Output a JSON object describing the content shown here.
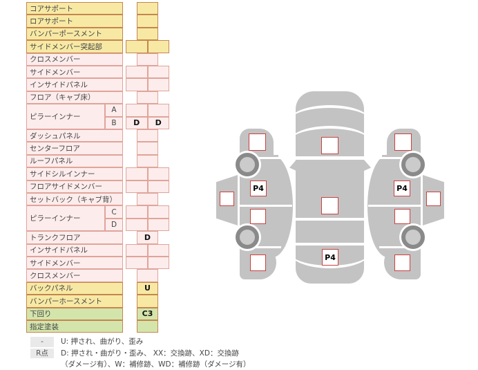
{
  "table": {
    "rows": [
      {
        "label": "コアサポート",
        "sub": "",
        "color": "yellow",
        "type": "single",
        "values": [
          ""
        ]
      },
      {
        "label": "ロアサポート",
        "sub": "",
        "color": "yellow",
        "type": "single",
        "values": [
          ""
        ]
      },
      {
        "label": "バンパーポースメント",
        "sub": "",
        "color": "yellow",
        "type": "single",
        "values": [
          ""
        ]
      },
      {
        "label": "サイドメンバー突起部",
        "sub": "",
        "color": "yellow",
        "type": "double",
        "values": [
          "",
          ""
        ]
      },
      {
        "label": "クロスメンバー",
        "sub": "",
        "color": "pink",
        "type": "single",
        "values": [
          ""
        ]
      },
      {
        "label": "サイドメンバー",
        "sub": "",
        "color": "pink",
        "type": "double",
        "values": [
          "",
          ""
        ]
      },
      {
        "label": "インサイドパネル",
        "sub": "",
        "color": "pink",
        "type": "double",
        "values": [
          "",
          ""
        ]
      },
      {
        "label": "フロア（キャブ床）",
        "sub": "",
        "color": "pink",
        "type": "single",
        "values": [
          ""
        ]
      },
      {
        "label": "ピラーインナー",
        "sub": "A",
        "color": "pink",
        "type": "double",
        "values": [
          "",
          ""
        ],
        "span": 2
      },
      {
        "label": "",
        "sub": "B",
        "color": "pink",
        "type": "double",
        "values": [
          "D",
          "D"
        ],
        "cont": true
      },
      {
        "label": "ダッシュパネル",
        "sub": "",
        "color": "pink",
        "type": "single",
        "values": [
          ""
        ]
      },
      {
        "label": "センターフロア",
        "sub": "",
        "color": "pink",
        "type": "single",
        "values": [
          ""
        ]
      },
      {
        "label": "ルーフパネル",
        "sub": "",
        "color": "pink",
        "type": "single",
        "values": [
          ""
        ]
      },
      {
        "label": "サイドシルインナー",
        "sub": "",
        "color": "pink",
        "type": "double",
        "values": [
          "",
          ""
        ]
      },
      {
        "label": "フロアサイドメンバー",
        "sub": "",
        "color": "pink",
        "type": "double",
        "values": [
          "",
          ""
        ]
      },
      {
        "label": "セットバック（キャブ背）",
        "sub": "",
        "color": "pink",
        "type": "single",
        "values": [
          ""
        ]
      },
      {
        "label": "ピラーインナー",
        "sub": "C",
        "color": "pink",
        "type": "double",
        "values": [
          "",
          ""
        ],
        "span": 2
      },
      {
        "label": "",
        "sub": "D",
        "color": "pink",
        "type": "double",
        "values": [
          "",
          ""
        ],
        "cont": true
      },
      {
        "label": "トランクフロア",
        "sub": "",
        "color": "pink",
        "type": "single",
        "values": [
          "D"
        ]
      },
      {
        "label": "インサイドパネル",
        "sub": "",
        "color": "pink",
        "type": "double",
        "values": [
          "",
          ""
        ]
      },
      {
        "label": "サイドメンバー",
        "sub": "",
        "color": "pink",
        "type": "double",
        "values": [
          "",
          ""
        ]
      },
      {
        "label": "クロスメンバー",
        "sub": "",
        "color": "pink",
        "type": "single",
        "values": [
          ""
        ]
      },
      {
        "label": "バックパネル",
        "sub": "",
        "color": "yellow",
        "type": "single",
        "values": [
          "U"
        ]
      },
      {
        "label": "バンパーホースメント",
        "sub": "",
        "color": "yellow",
        "type": "single",
        "values": [
          ""
        ]
      },
      {
        "label": "下回り",
        "sub": "",
        "color": "green",
        "type": "single",
        "values": [
          "C3"
        ]
      },
      {
        "label": "指定塗装",
        "sub": "",
        "color": "green",
        "type": "single",
        "values": [
          ""
        ]
      }
    ]
  },
  "legend": {
    "rows": [
      {
        "badge": "-",
        "text": "U: 押され、曲がり、歪み"
      },
      {
        "badge": "R点",
        "text": "D: 押され・曲がり・歪み、 XX：交換跡、XD：交換跡",
        "text2": "（ダメージ有）、W：補修跡、WD：補修跡（ダメージ有）"
      }
    ]
  },
  "diagram": {
    "left_view": {
      "glass": "",
      "front": "",
      "door_front": "P4",
      "door_rear": "",
      "rear": ""
    },
    "top_view": {
      "hood": "",
      "roof": "",
      "trunk": "P4"
    },
    "right_view": {
      "glass": "",
      "front": "",
      "door_front": "P4",
      "door_rear": "",
      "rear": ""
    }
  },
  "colors": {
    "marker_border": "#c84040",
    "car_gray": "#c3c3c3",
    "row_yellow": "#f7e9a4",
    "row_pink": "#fdecec",
    "row_green": "#d4e5ac"
  }
}
